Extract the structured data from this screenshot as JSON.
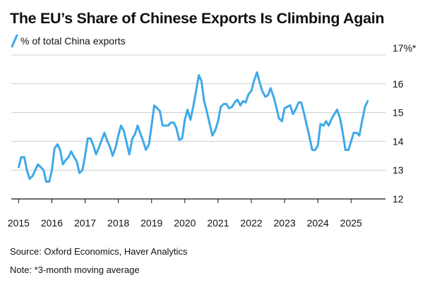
{
  "title": "The EU’s Share of Chinese Exports Is Climbing Again",
  "legend_label": "% of total China exports",
  "source": "Source: Oxford Economics, Haver Analytics",
  "note": "Note: *3-month moving average",
  "colors": {
    "line": "#3fa9e8",
    "grid": "#cccccc",
    "text": "#111111",
    "axis": "#111111"
  },
  "chart_data": {
    "type": "line",
    "title": "The EU’s Share of Chinese Exports Is Climbing Again",
    "xlabel": "",
    "ylabel": "% of total China exports",
    "xlim": [
      2014.78,
      2025.95
    ],
    "ylim": [
      12,
      17
    ],
    "y_ticks": [
      {
        "value": 12,
        "label": "12"
      },
      {
        "value": 13,
        "label": "13"
      },
      {
        "value": 14,
        "label": "14"
      },
      {
        "value": 15,
        "label": "15"
      },
      {
        "value": 16,
        "label": "16"
      },
      {
        "value": 17,
        "label": "17%*"
      }
    ],
    "x_ticks": [
      {
        "value": 2015,
        "label": "2015"
      },
      {
        "value": 2016,
        "label": "2016"
      },
      {
        "value": 2017,
        "label": "2017"
      },
      {
        "value": 2018,
        "label": "2018"
      },
      {
        "value": 2019,
        "label": "2019"
      },
      {
        "value": 2020,
        "label": "2020"
      },
      {
        "value": 2021,
        "label": "2021"
      },
      {
        "value": 2022,
        "label": "2022"
      },
      {
        "value": 2023,
        "label": "2023"
      },
      {
        "value": 2024,
        "label": "2024"
      },
      {
        "value": 2025,
        "label": "2025"
      }
    ],
    "grid": true,
    "legend_position": "top-left",
    "series": [
      {
        "name": "% of total China exports",
        "x": [
          2015.0,
          2015.08,
          2015.17,
          2015.25,
          2015.33,
          2015.42,
          2015.5,
          2015.58,
          2015.67,
          2015.75,
          2015.83,
          2015.92,
          2016.0,
          2016.08,
          2016.17,
          2016.25,
          2016.33,
          2016.42,
          2016.5,
          2016.58,
          2016.67,
          2016.75,
          2016.83,
          2016.92,
          2017.0,
          2017.08,
          2017.17,
          2017.25,
          2017.33,
          2017.42,
          2017.5,
          2017.58,
          2017.67,
          2017.75,
          2017.83,
          2017.92,
          2018.0,
          2018.08,
          2018.17,
          2018.25,
          2018.33,
          2018.42,
          2018.5,
          2018.58,
          2018.67,
          2018.75,
          2018.83,
          2018.92,
          2019.0,
          2019.08,
          2019.17,
          2019.25,
          2019.33,
          2019.42,
          2019.5,
          2019.58,
          2019.67,
          2019.75,
          2019.83,
          2019.92,
          2020.0,
          2020.08,
          2020.17,
          2020.25,
          2020.33,
          2020.42,
          2020.5,
          2020.58,
          2020.67,
          2020.75,
          2020.83,
          2020.92,
          2021.0,
          2021.08,
          2021.17,
          2021.25,
          2021.33,
          2021.42,
          2021.5,
          2021.58,
          2021.67,
          2021.75,
          2021.83,
          2021.92,
          2022.0,
          2022.08,
          2022.17,
          2022.25,
          2022.33,
          2022.42,
          2022.5,
          2022.58,
          2022.67,
          2022.75,
          2022.83,
          2022.92,
          2023.0,
          2023.08,
          2023.17,
          2023.25,
          2023.33,
          2023.42,
          2023.5,
          2023.58,
          2023.67,
          2023.75,
          2023.83,
          2023.92,
          2024.0,
          2024.08,
          2024.17,
          2024.25,
          2024.33,
          2024.42,
          2024.5,
          2024.58,
          2024.67,
          2024.75,
          2024.83,
          2024.92,
          2025.0,
          2025.08,
          2025.17,
          2025.25,
          2025.33,
          2025.42,
          2025.5
        ],
        "values": [
          13.1,
          13.45,
          13.45,
          13.0,
          12.7,
          12.8,
          13.0,
          13.2,
          13.1,
          13.0,
          12.6,
          12.6,
          13.0,
          13.75,
          13.9,
          13.7,
          13.2,
          13.35,
          13.45,
          13.65,
          13.45,
          13.3,
          12.9,
          13.0,
          13.5,
          14.1,
          14.1,
          13.85,
          13.55,
          13.8,
          14.05,
          14.3,
          14.0,
          13.8,
          13.5,
          13.8,
          14.2,
          14.55,
          14.35,
          13.95,
          13.55,
          14.1,
          14.25,
          14.55,
          14.25,
          14.0,
          13.7,
          13.9,
          14.55,
          15.25,
          15.15,
          15.05,
          14.55,
          14.55,
          14.55,
          14.65,
          14.65,
          14.45,
          14.05,
          14.1,
          14.75,
          15.1,
          14.75,
          15.2,
          15.7,
          16.3,
          16.1,
          15.4,
          15.0,
          14.6,
          14.2,
          14.4,
          14.7,
          15.2,
          15.3,
          15.3,
          15.15,
          15.2,
          15.35,
          15.45,
          15.25,
          15.4,
          15.35,
          15.65,
          15.75,
          16.1,
          16.4,
          16.05,
          15.75,
          15.55,
          15.6,
          15.85,
          15.55,
          15.2,
          14.8,
          14.7,
          15.15,
          15.2,
          15.25,
          14.95,
          15.1,
          15.35,
          15.35,
          15.0,
          14.55,
          14.15,
          13.7,
          13.7,
          13.85,
          14.6,
          14.55,
          14.7,
          14.55,
          14.8,
          14.95,
          15.1,
          14.8,
          14.3,
          13.7,
          13.7,
          14.0,
          14.3,
          14.3,
          14.2,
          14.7,
          15.2,
          15.4
        ]
      }
    ]
  }
}
